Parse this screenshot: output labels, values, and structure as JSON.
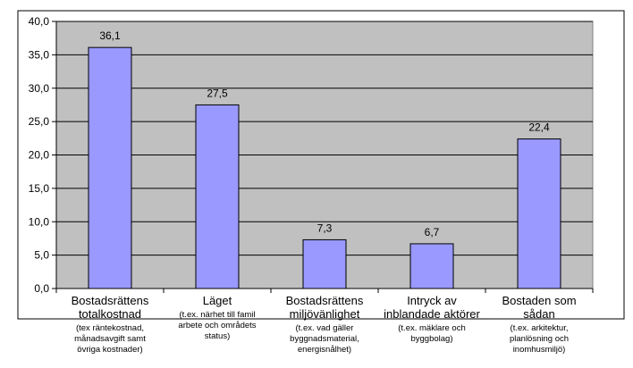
{
  "chart_data": {
    "type": "bar",
    "categories": [
      {
        "main": [
          "Bostadsrättens",
          "totalkostnad"
        ],
        "sub": [
          "(tex räntekostnad,",
          "månadsavgift samt",
          "övriga kostnader)"
        ]
      },
      {
        "main": [
          "Läget"
        ],
        "sub": [
          "(t.ex. närhet till famil",
          "arbete och områdets",
          "status)"
        ]
      },
      {
        "main": [
          "Bostadsrättens",
          "miljövänlighet"
        ],
        "sub": [
          "(t.ex. vad gäller",
          "byggnadsmaterial,",
          "energisnålhet)"
        ]
      },
      {
        "main": [
          "Intryck av",
          "inblandade aktörer"
        ],
        "sub": [
          "(t.ex. mäklare och",
          "byggbolag)"
        ]
      },
      {
        "main": [
          "Bostaden som",
          "sådan"
        ],
        "sub": [
          "(t.ex. arkitektur,",
          "planlösning och",
          "inomhusmiljö)"
        ]
      }
    ],
    "values": [
      36.1,
      27.5,
      7.3,
      6.7,
      22.4
    ],
    "data_labels": [
      "36,1",
      "27,5",
      "7,3",
      "6,7",
      "22,4"
    ],
    "y_ticks": [
      "0,0",
      "5,0",
      "10,0",
      "15,0",
      "20,0",
      "25,0",
      "30,0",
      "35,0",
      "40,0"
    ],
    "ylim": [
      0,
      40
    ],
    "grid": true,
    "title": "",
    "xlabel": "",
    "ylabel": "",
    "colors": {
      "bar_fill": "#9999ff",
      "bar_stroke": "#000000",
      "plot_background": "#c0c0c0",
      "gridline": "#000000"
    }
  }
}
